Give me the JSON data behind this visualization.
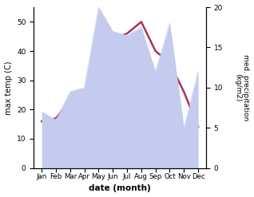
{
  "months": [
    "Jan",
    "Feb",
    "Mar",
    "Apr",
    "May",
    "Jun",
    "Jul",
    "Aug",
    "Sep",
    "Oct",
    "Nov",
    "Dec"
  ],
  "temp": [
    16,
    17,
    23,
    25,
    31,
    44,
    46,
    50,
    40,
    36,
    26,
    14
  ],
  "precip": [
    7.0,
    6.0,
    9.5,
    10.0,
    20.0,
    17.0,
    16.5,
    17.5,
    12.0,
    18.0,
    5.0,
    12.0
  ],
  "temp_color": "#aa3355",
  "precip_fill_color": "#c5cbee",
  "title": "",
  "xlabel": "date (month)",
  "ylabel_left": "max temp (C)",
  "ylabel_right": "med. precipitation\n(kg/m2)",
  "ylim_left": [
    0,
    55
  ],
  "ylim_right": [
    0,
    20
  ],
  "yticks_left": [
    0,
    10,
    20,
    30,
    40,
    50
  ],
  "yticks_right": [
    0,
    5,
    10,
    15,
    20
  ],
  "bg_color": "#ffffff"
}
